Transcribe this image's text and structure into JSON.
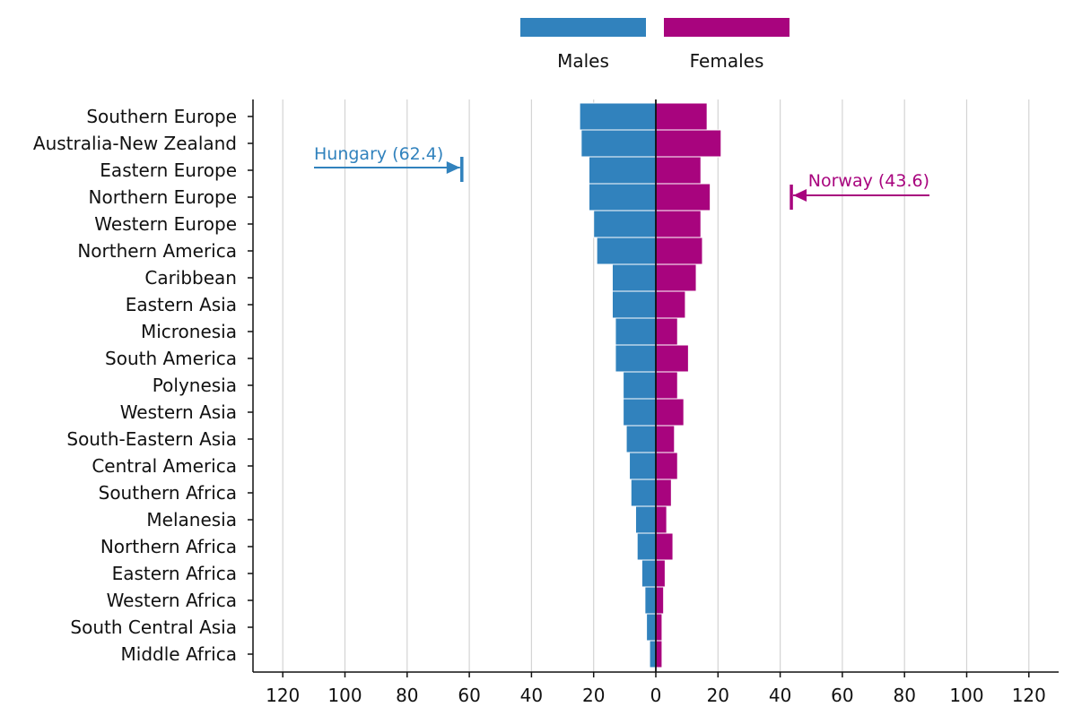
{
  "chart_data": {
    "type": "bar",
    "orientation": "horizontal",
    "layout": "back-to-back",
    "categories": [
      "Southern Europe",
      "Australia-New Zealand",
      "Eastern Europe",
      "Northern Europe",
      "Western Europe",
      "Northern America",
      "Caribbean",
      "Eastern Asia",
      "Micronesia",
      "South America",
      "Polynesia",
      "Western Asia",
      "South-Eastern Asia",
      "Central America",
      "Southern Africa",
      "Melanesia",
      "Northern Africa",
      "Eastern Africa",
      "Western Africa",
      "South Central Asia",
      "Middle Africa"
    ],
    "series": [
      {
        "name": "Males",
        "color": "#3182bd",
        "side": "left",
        "values": [
          24.5,
          24,
          21.5,
          21.5,
          20,
          19,
          14,
          14,
          13,
          13,
          10.5,
          10.5,
          9.5,
          8.5,
          8,
          6.5,
          6,
          4.5,
          3.5,
          3,
          2
        ]
      },
      {
        "name": "Females",
        "color": "#a8047e",
        "side": "right",
        "values": [
          16.5,
          21,
          14.5,
          17.5,
          14.5,
          15,
          13,
          9.5,
          7,
          10.5,
          7,
          9,
          6,
          7,
          5,
          3.5,
          5.5,
          3,
          2.5,
          2,
          2
        ]
      }
    ],
    "xlim": [
      -130,
      130
    ],
    "xticks": [
      -120,
      -100,
      -80,
      -60,
      -40,
      -20,
      0,
      20,
      40,
      60,
      80,
      100,
      120
    ],
    "xtick_labels": [
      "120",
      "100",
      "80",
      "60",
      "40",
      "20",
      "0",
      "20",
      "40",
      "60",
      "80",
      "100",
      "120"
    ],
    "grid": "vertical",
    "legend_position": "top-center",
    "annotations": [
      {
        "text": "Hungary (62.4)",
        "series": "Males",
        "value": 62.4,
        "color": "#3182bd"
      },
      {
        "text": "Norway (43.6)",
        "series": "Females",
        "value": 43.6,
        "color": "#a8047e"
      }
    ],
    "title": "",
    "xlabel": "",
    "ylabel": ""
  }
}
